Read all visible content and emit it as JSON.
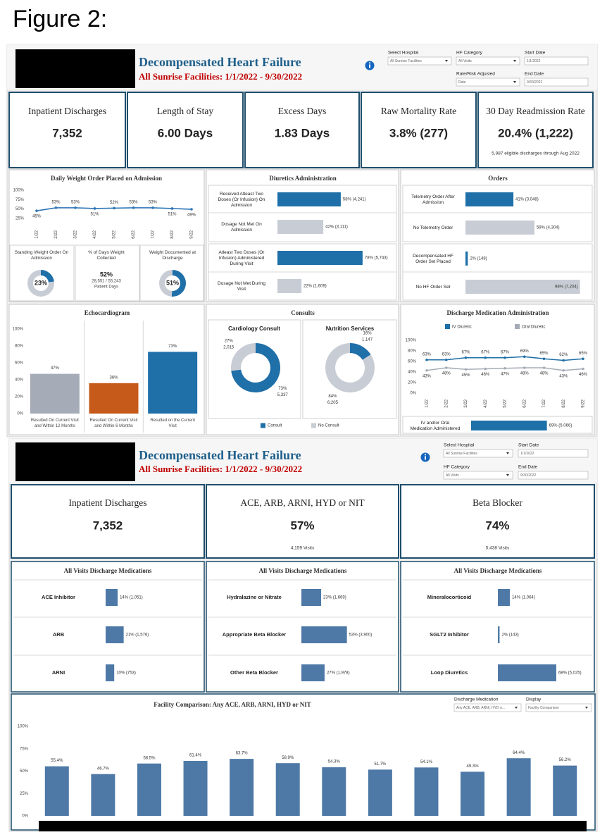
{
  "figure_title": "Figure 2:",
  "dashboards": [
    {
      "title": "Decompensated Heart Failure",
      "subtitle": "All Sunrise Facilities: 1/1/2022 - 9/30/2022",
      "filters": [
        {
          "label": "Select Hospital",
          "value": "All Sunrise Facilities",
          "kind": "dropdown"
        },
        {
          "label": "HF Category",
          "value": "All Visits",
          "kind": "dropdown"
        },
        {
          "label": "Start Date",
          "value": "1/1/2022",
          "kind": "date"
        },
        {
          "label": "Rate/Risk Adjusted",
          "value": "Rate",
          "kind": "dropdown"
        },
        {
          "label": "End Date",
          "value": "9/30/2022",
          "kind": "date"
        }
      ],
      "kpis": [
        {
          "title": "Inpatient Discharges",
          "value": "7,352"
        },
        {
          "title": "Length of Stay",
          "value": "6.00 Days"
        },
        {
          "title": "Excess Days",
          "value": "1.83 Days"
        },
        {
          "title": "Raw Mortality Rate",
          "value": "3.8% (277)"
        },
        {
          "title": "30 Day Readmission Rate",
          "value": "20.4% (1,222)",
          "note": "5,987 eligible discharges through Aug 2022"
        }
      ],
      "weight_collected": {
        "title": "% of Days Weight Collected",
        "value": "52%",
        "detail": "28,551 / 55,243",
        "unit": "Patient Days"
      },
      "consults_title": "Consults"
    },
    {
      "title": "Decompensated Heart Failure",
      "subtitle": "All Sunrise Facilities: 1/1/2022 - 9/30/2022",
      "filters": [
        {
          "label": "Select Hospital",
          "value": "All Sunrise Facilities",
          "kind": "dropdown"
        },
        {
          "label": "Start Date",
          "value": "1/1/2022",
          "kind": "date"
        },
        {
          "label": "HF Category",
          "value": "All Visits",
          "kind": "dropdown"
        },
        {
          "label": "End Date",
          "value": "9/30/2022",
          "kind": "date"
        }
      ],
      "kpis": [
        {
          "title": "Inpatient Discharges",
          "value": "7,352"
        },
        {
          "title": "ACE, ARB, ARNI, HYD or NIT",
          "value": "57%",
          "note": "4,159 Visits"
        },
        {
          "title": "Beta Blocker",
          "value": "74%",
          "note": "5,438 Visits"
        }
      ]
    }
  ],
  "chart_data": [
    {
      "type": "line",
      "title": "Daily Weight Order Placed on Admission",
      "x": [
        "1/22",
        "2/22",
        "3/22",
        "4/22",
        "5/22",
        "6/22",
        "7/22",
        "8/22",
        "9/22"
      ],
      "series": [
        {
          "color": "#2e75b6",
          "values": [
            45,
            53,
            53,
            51,
            52,
            53,
            53,
            51,
            49
          ],
          "value_labels": [
            "45%",
            "53%",
            "53%",
            "51%",
            "52%",
            "53%",
            "53%",
            "51%",
            "49%"
          ]
        }
      ],
      "ylim": [
        0,
        100
      ],
      "yticks": [
        {
          "value": 25,
          "label": "25%"
        },
        {
          "value": 50,
          "label": "50%"
        },
        {
          "value": 75,
          "label": "75%"
        },
        {
          "value": 100,
          "label": "100%"
        }
      ]
    },
    {
      "type": "pie",
      "title": "Standing Weight Order On Admission",
      "values": [
        23,
        77
      ],
      "value_labels": [
        "23%",
        null
      ],
      "colors": [
        "#1f6fa8",
        "#c8cdd5"
      ]
    },
    {
      "type": "pie",
      "title": "Weight Documented at Discharge",
      "values": [
        51,
        49
      ],
      "value_labels": [
        "51%",
        null
      ],
      "colors": [
        "#1f6fa8",
        "#c8cdd5"
      ]
    },
    {
      "type": "bar",
      "horizontal": true,
      "title": "Diuretics Administration",
      "categories": [
        "Received Atleast Two Doses (Or Infusion) On Admission",
        "Dosage Not Met On Admission",
        "Atleast Two Doses (Or Infusion) Administered During Visit",
        "Dosage Not Met During Visit"
      ],
      "values": [
        58,
        42,
        78,
        22
      ],
      "value_labels": [
        "58% (4,241)",
        "42% (3,111)",
        "78% (5,743)",
        "22% (1,609)"
      ],
      "colors": [
        "#1f6fa8",
        "#c8cdd5",
        "#1f6fa8",
        "#c8cdd5"
      ],
      "xlim": [
        0,
        100
      ]
    },
    {
      "type": "bar",
      "horizontal": true,
      "title": "Orders",
      "categories": [
        "Telemetry Order After Admission",
        "No Telemetry Order",
        "Decompensated HF Order Set Placed",
        "No HF Order Set"
      ],
      "values": [
        41,
        59,
        2,
        98
      ],
      "value_labels": [
        "41% (3,048)",
        "59% (4,304)",
        "2% (148)",
        "98% (7,204)"
      ],
      "colors": [
        "#1f6fa8",
        "#c8cdd5",
        "#1f6fa8",
        "#c8cdd5"
      ],
      "xlim": [
        0,
        100
      ]
    },
    {
      "type": "bar",
      "title": "Echocardiogram",
      "categories": [
        "Resulted On Current Visit and Within 12 Months",
        "Resulted On Current Visit and Within 6 Months",
        "Resulted on the Current Visit"
      ],
      "values": [
        47,
        36,
        73
      ],
      "value_labels": [
        "47%",
        "36%",
        "73%"
      ],
      "colors": [
        "#a5acb7",
        "#c55a1a",
        "#1f6fa8"
      ],
      "ylim": [
        0,
        100
      ],
      "yticks": [
        {
          "value": 0,
          "label": "0%"
        },
        {
          "value": 20,
          "label": "20%"
        },
        {
          "value": 40,
          "label": "40%"
        },
        {
          "value": 60,
          "label": "60%"
        },
        {
          "value": 80,
          "label": "80%"
        },
        {
          "value": 100,
          "label": "100%"
        }
      ]
    },
    {
      "type": "pie",
      "title": "Cardiology Consult",
      "categories": [
        "Consult",
        "No Consult"
      ],
      "values": [
        73,
        27
      ],
      "value_labels": [
        "73%",
        "27%"
      ],
      "count_labels": [
        "5,337",
        "2,015"
      ],
      "colors": [
        "#1f6fa8",
        "#c8cdd5"
      ]
    },
    {
      "type": "pie",
      "title": "Nutrition Services",
      "values": [
        16,
        84
      ],
      "value_labels": [
        "16%",
        "84%"
      ],
      "count_labels": [
        "1,147",
        "6,205"
      ],
      "colors": [
        "#1f6fa8",
        "#c8cdd5"
      ]
    },
    {
      "type": "line",
      "title": "Discharge Medication Administration",
      "x": [
        "1/22",
        "2/22",
        "3/22",
        "4/22",
        "5/22",
        "6/22",
        "7/22",
        "8/22",
        "9/22"
      ],
      "series": [
        {
          "name": "IV Diuretic",
          "color": "#1f6fa8",
          "values": [
            63,
            63,
            67,
            67,
            67,
            69,
            65,
            62,
            65
          ],
          "value_labels": [
            "63%",
            "63%",
            "67%",
            "67%",
            "67%",
            "69%",
            "65%",
            "62%",
            "65%"
          ]
        },
        {
          "name": "Oral Diuretic",
          "color": "#a5acb7",
          "values": [
            43,
            48,
            45,
            46,
            47,
            48,
            48,
            43,
            46
          ],
          "value_labels": [
            "43%",
            "48%",
            "45%",
            "46%",
            "47%",
            "48%",
            "48%",
            "43%",
            "46%"
          ]
        }
      ],
      "ylim": [
        0,
        100
      ],
      "yticks": [
        {
          "value": 0,
          "label": "0%"
        },
        {
          "value": 20,
          "label": "20%"
        },
        {
          "value": 40,
          "label": "40%"
        },
        {
          "value": 60,
          "label": "60%"
        },
        {
          "value": 80,
          "label": "80%"
        },
        {
          "value": 100,
          "label": "100%"
        }
      ]
    },
    {
      "type": "bar",
      "horizontal": true,
      "categories": [
        "IV and/or Oral Medication Administered"
      ],
      "values": [
        69
      ],
      "value_labels": [
        "69% (5,066)"
      ],
      "color": "#1f6fa8",
      "xlim": [
        0,
        100
      ]
    },
    {
      "type": "bar",
      "horizontal": true,
      "title": "All Visits Discharge Medications",
      "categories": [
        "ACE Inhibitor",
        "ARB",
        "ARNI"
      ],
      "values": [
        14,
        21,
        10
      ],
      "value_labels": [
        "14% (1,051)",
        "21% (1,576)",
        "10% (753)"
      ],
      "color": "#4e79a7",
      "xlim": [
        0,
        100
      ]
    },
    {
      "type": "bar",
      "horizontal": true,
      "title": "All Visits Discharge Medications",
      "categories": [
        "Hydralazine or Nitrate",
        "Appropriate Beta Blocker",
        "Other Beta Blocker"
      ],
      "values": [
        23,
        53,
        27
      ],
      "value_labels": [
        "23% (1,669)",
        "53% (3,900)",
        "27% (1,978)"
      ],
      "color": "#4e79a7",
      "xlim": [
        0,
        100
      ]
    },
    {
      "type": "bar",
      "horizontal": true,
      "title": "All Visits Discharge Medications",
      "categories": [
        "Mineralocorticoid",
        "SGLT2 Inhibitor",
        "Loop Diuretics"
      ],
      "values": [
        14,
        2,
        68
      ],
      "value_labels": [
        "14% (1,064)",
        "2% (143)",
        "68% (5,025)"
      ],
      "color": "#4e79a7",
      "xlim": [
        0,
        100
      ]
    },
    {
      "type": "bar",
      "title": "Facility Comparison: Any ACE, ARB, ARNI, HYD or NIT",
      "filters": [
        {
          "label": "Discharge Medication",
          "value": "Any ACE, ARB, ARNI, HYD o...",
          "kind": "dropdown"
        },
        {
          "label": "Display",
          "value": "Facility Comparison",
          "kind": "dropdown"
        }
      ],
      "categories": [
        null,
        null,
        null,
        null,
        null,
        null,
        null,
        null,
        null,
        null,
        null,
        null
      ],
      "values": [
        55.4,
        46.7,
        58.5,
        61.4,
        63.7,
        58.9,
        54.3,
        51.7,
        54.1,
        49.3,
        64.4,
        56.2
      ],
      "value_labels": [
        "55.4%",
        "46.7%",
        "58.5%",
        "61.4%",
        "63.7%",
        "58.9%",
        "54.3%",
        "51.7%",
        "54.1%",
        "49.3%",
        "64.4%",
        "56.2%"
      ],
      "color": "#4e79a7",
      "ylim": [
        0,
        100
      ],
      "yticks": [
        {
          "value": 0,
          "label": "0%"
        },
        {
          "value": 25,
          "label": "25%"
        },
        {
          "value": 50,
          "label": "50%"
        },
        {
          "value": 75,
          "label": "75%"
        },
        {
          "value": 100,
          "label": "100%"
        }
      ]
    }
  ]
}
